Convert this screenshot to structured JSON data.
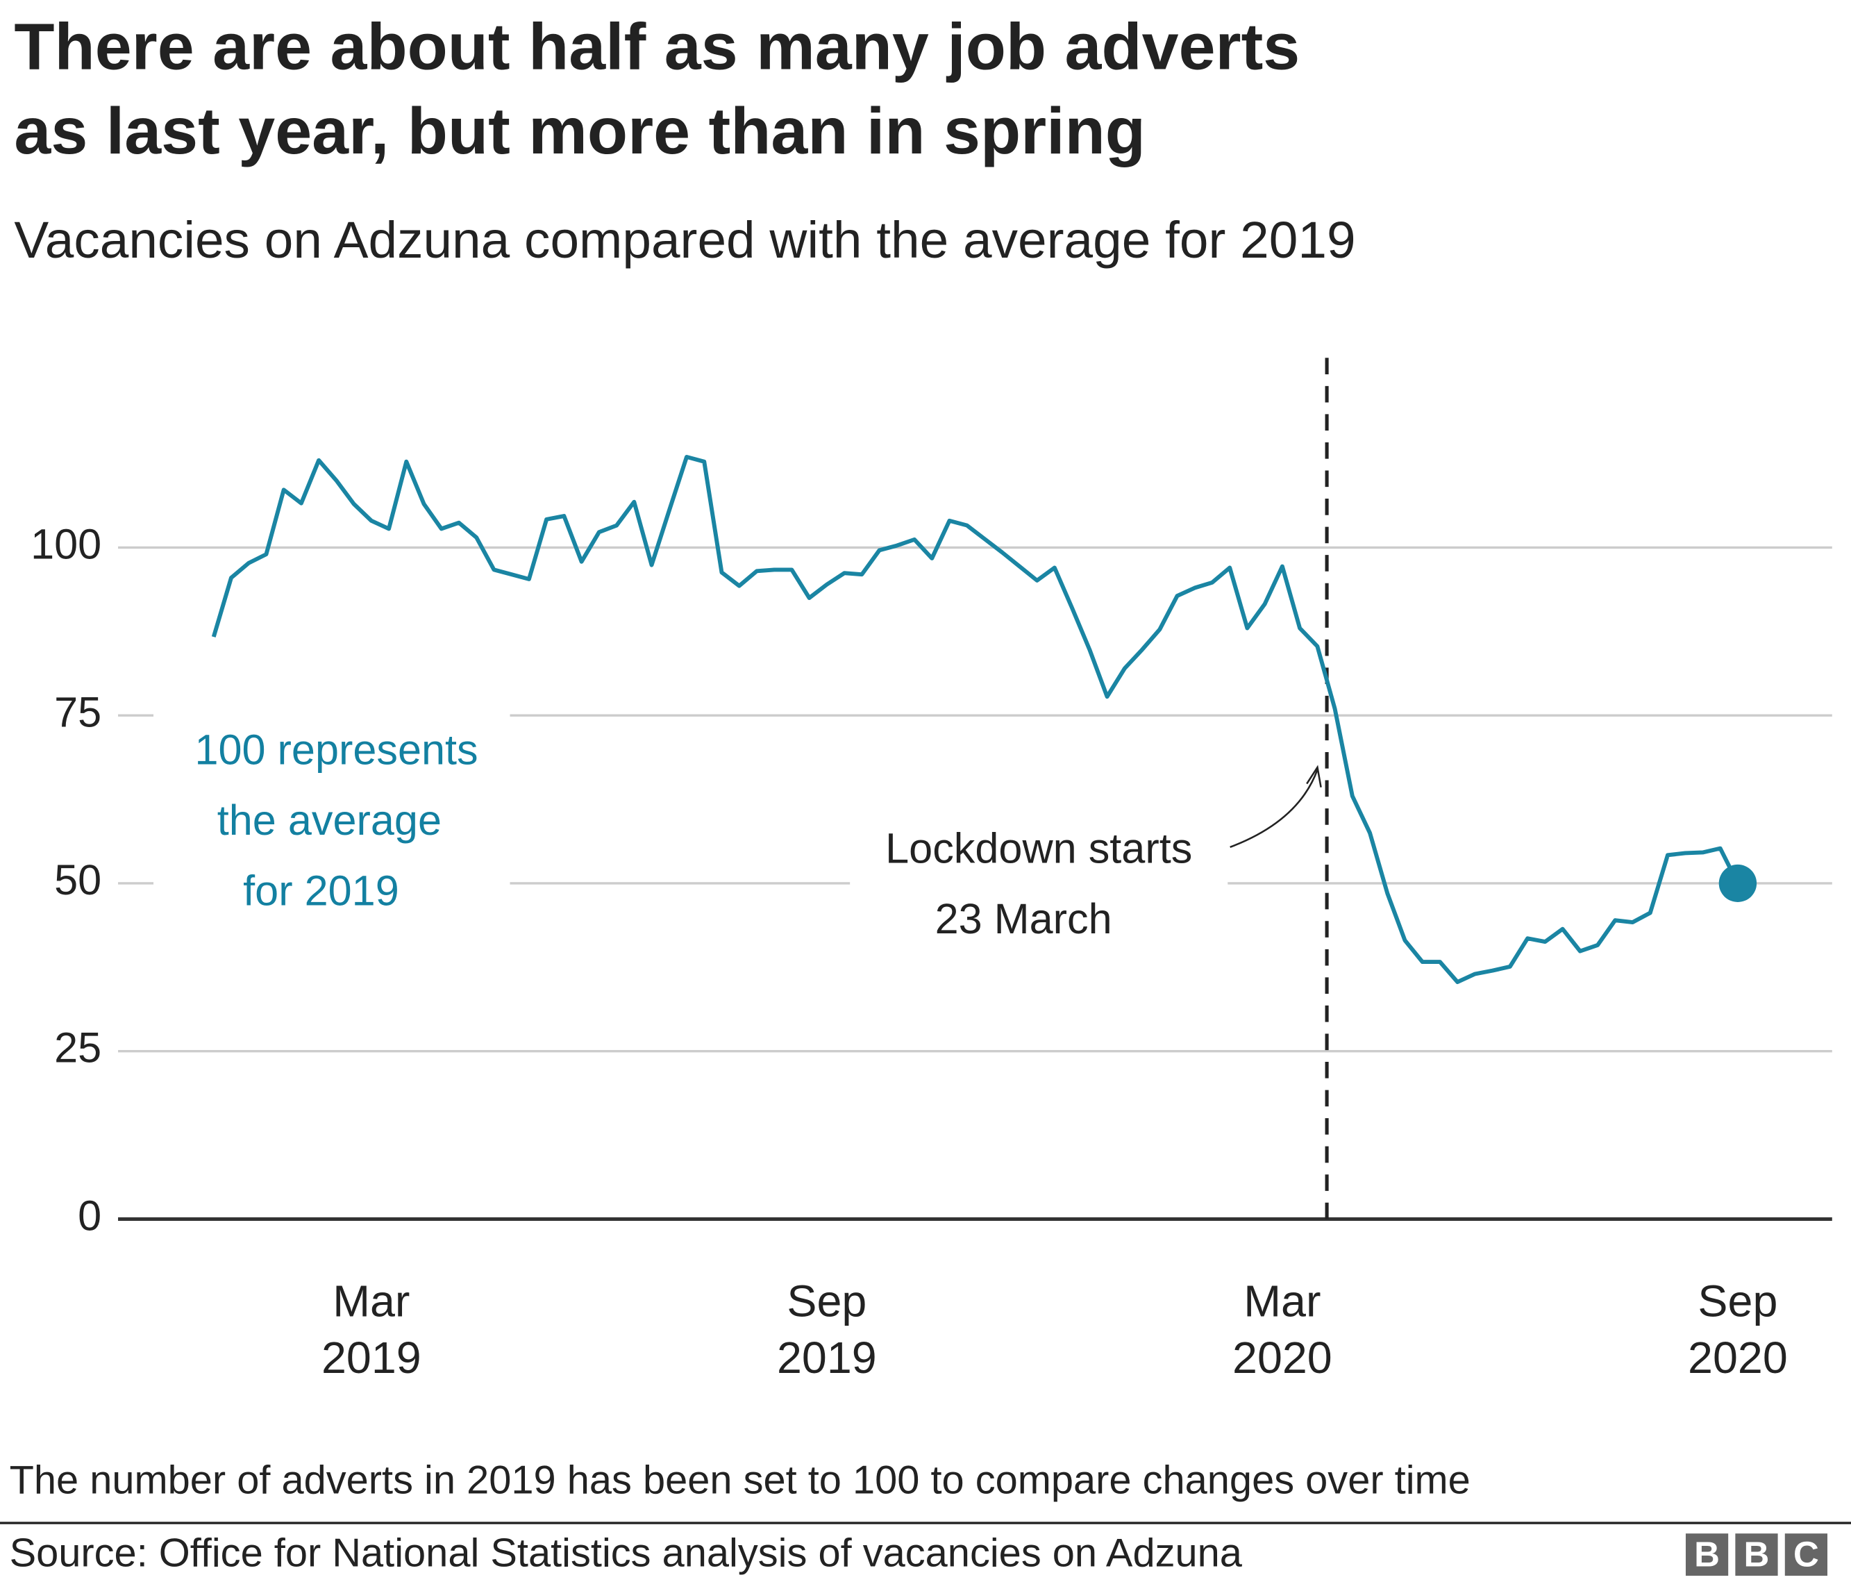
{
  "chart_data": {
    "type": "line",
    "title": [
      "There are about half as many job adverts",
      "as last year, but more than in spring"
    ],
    "subtitle": "Vacancies on Adzuna compared with the average for 2019",
    "categories": [
      null,
      null,
      null,
      null,
      null,
      null,
      null,
      null,
      null,
      [
        "Mar",
        "2019"
      ],
      null,
      null,
      null,
      null,
      null,
      null,
      null,
      null,
      null,
      null,
      null,
      null,
      null,
      null,
      null,
      null,
      null,
      null,
      null,
      null,
      null,
      null,
      null,
      null,
      null,
      [
        "Sep",
        "2019"
      ],
      null,
      null,
      null,
      null,
      null,
      null,
      null,
      null,
      null,
      null,
      null,
      null,
      null,
      null,
      null,
      null,
      null,
      null,
      null,
      null,
      null,
      null,
      null,
      null,
      null,
      [
        "Mar",
        "2020"
      ],
      null,
      null,
      null,
      null,
      null,
      null,
      null,
      null,
      null,
      null,
      null,
      null,
      null,
      null,
      null,
      null,
      null,
      null,
      null,
      null,
      null,
      null,
      null,
      null,
      null,
      [
        "Sep",
        "2020"
      ]
    ],
    "series": [
      {
        "name": "Vacancies",
        "color": "#1a85a3",
        "values": [
          86.7,
          95.5,
          97.7,
          99,
          108.6,
          106.6,
          113,
          110,
          106.5,
          104,
          102.8,
          112.8,
          106.5,
          102.8,
          103.7,
          101.5,
          96.7,
          96,
          95.3,
          104.2,
          104.7,
          97.9,
          102.3,
          103.3,
          106.8,
          97.4,
          105.5,
          113.5,
          112.8,
          96.3,
          94.3,
          96.5,
          96.7,
          96.7,
          92.5,
          94.5,
          96.2,
          96,
          99.6,
          100.3,
          101.2,
          98.4,
          104,
          103.3,
          101.3,
          99.3,
          97.2,
          95.1,
          97,
          91,
          84.8,
          77.8,
          82,
          84.8,
          87.8,
          92.8,
          94,
          94.8,
          97,
          88,
          91.6,
          97.2,
          88,
          85.3,
          76,
          63,
          57.5,
          48.5,
          41.5,
          38.3,
          38.3,
          35.3,
          36.5,
          37,
          37.6,
          41.8,
          41.3,
          43.2,
          39.9,
          40.8,
          44.5,
          44.2,
          45.6,
          54.2,
          54.5,
          54.6,
          55.2,
          50
        ]
      }
    ],
    "ylim": [
      0,
      130
    ],
    "yticks": [
      0,
      25,
      50,
      75,
      100
    ],
    "grid": true,
    "annotations": [
      {
        "text": [
          "100 represents",
          "the average",
          "for 2019"
        ]
      },
      {
        "text": [
          "Lockdown starts",
          "23 March"
        ]
      }
    ],
    "note": "The number of adverts in 2019 has been set to 100 to compare changes over time",
    "source": "Source: Office for National Statistics analysis of vacancies on Adzuna"
  }
}
